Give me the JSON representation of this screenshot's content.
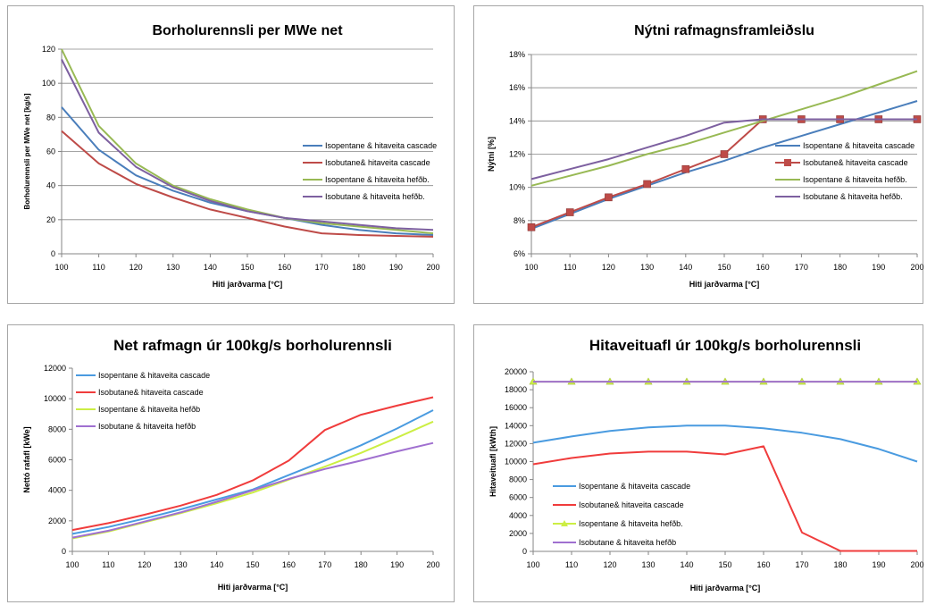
{
  "chart_data": [
    {
      "type": "line",
      "title": "Borholurennsli per MWe net",
      "xlabel": "Hiti jarðvarma [°C]",
      "ylabel": "Borholurennsli per MWe net [kg/s]",
      "x": [
        100,
        110,
        120,
        130,
        140,
        150,
        160,
        170,
        180,
        190,
        200
      ],
      "xlim": [
        100,
        200
      ],
      "ylim": [
        0,
        120
      ],
      "yticks": [
        0,
        20,
        40,
        60,
        80,
        100,
        120
      ],
      "ytick_labels": [
        "0",
        "20",
        "40",
        "60",
        "80",
        "100",
        "120"
      ],
      "grid": "horizontal",
      "legend_position": "right",
      "series": [
        {
          "name": "Isopentane & hitaveita cascade",
          "color": "#4a7ebb",
          "values": [
            86,
            61,
            46,
            37,
            30,
            25,
            21,
            17,
            14,
            12,
            11
          ]
        },
        {
          "name": "Isobutane& hitaveita cascade",
          "color": "#be4b48",
          "values": [
            72,
            53,
            41,
            33,
            26,
            21,
            16,
            12,
            11,
            10.5,
            10
          ]
        },
        {
          "name": "Isopentane & hitaveita hefðb.",
          "color": "#98b954",
          "values": [
            120,
            75,
            53,
            40,
            32,
            26,
            21,
            18,
            16,
            14,
            12
          ]
        },
        {
          "name": "Isobutane & hitaveita hefðb.",
          "color": "#7d60a0",
          "values": [
            114,
            71,
            51,
            39,
            31,
            25,
            21,
            19,
            17,
            15,
            14
          ]
        }
      ]
    },
    {
      "type": "line",
      "title": "Nýtni rafmagnsframleiðslu",
      "xlabel": "Hiti jarðvarma [°C]",
      "ylabel": "Nýtni [%]",
      "x": [
        100,
        110,
        120,
        130,
        140,
        150,
        160,
        170,
        180,
        190,
        200
      ],
      "xlim": [
        100,
        200
      ],
      "ylim": [
        6,
        18
      ],
      "yticks": [
        6,
        8,
        10,
        12,
        14,
        16,
        18
      ],
      "ytick_labels": [
        "6%",
        "8%",
        "10%",
        "12%",
        "14%",
        "16%",
        "18%"
      ],
      "grid": "horizontal",
      "legend_position": "right",
      "series": [
        {
          "name": "Isopentane & hitaveita cascade",
          "color": "#4a7ebb",
          "values": [
            7.5,
            8.4,
            9.3,
            10.1,
            10.9,
            11.6,
            12.4,
            13.1,
            13.8,
            14.5,
            15.2
          ]
        },
        {
          "name": "Isobutane& hitaveita cascade",
          "color": "#be4b48",
          "marker": "square",
          "values": [
            7.6,
            8.5,
            9.4,
            10.2,
            11.1,
            12.0,
            14.1,
            14.1,
            14.1,
            14.1,
            14.1
          ]
        },
        {
          "name": "Isopentane & hitaveita hefðb.",
          "color": "#98b954",
          "values": [
            10.1,
            10.7,
            11.3,
            12.0,
            12.6,
            13.3,
            14.0,
            14.7,
            15.4,
            16.2,
            17.0
          ]
        },
        {
          "name": "Isobutane & hitaveita hefðb.",
          "color": "#7d60a0",
          "values": [
            10.5,
            11.1,
            11.7,
            12.4,
            13.1,
            13.9,
            14.1,
            14.1,
            14.1,
            14.1,
            14.1
          ]
        }
      ]
    },
    {
      "type": "line",
      "title": "Net rafmagn úr 100kg/s borholurennsli",
      "xlabel": "Hiti jarðvarma [°C]",
      "ylabel": "Nettó rafafl [kWe]",
      "x": [
        100,
        110,
        120,
        130,
        140,
        150,
        160,
        170,
        180,
        190,
        200
      ],
      "xlim": [
        100,
        200
      ],
      "ylim": [
        0,
        12000
      ],
      "yticks": [
        0,
        2000,
        4000,
        6000,
        8000,
        10000,
        12000
      ],
      "ytick_labels": [
        "0",
        "2000",
        "4000",
        "6000",
        "8000",
        "10000",
        "12000"
      ],
      "grid": "none",
      "legend_position": "top-left",
      "series": [
        {
          "name": "Isopentane & hitaveita cascade",
          "color": "#4a9be0",
          "values": [
            1150,
            1600,
            2150,
            2750,
            3400,
            4050,
            5000,
            5950,
            6950,
            8050,
            9250
          ]
        },
        {
          "name": "Isobutane& hitaveita cascade",
          "color": "#f03c3c",
          "values": [
            1400,
            1850,
            2400,
            3000,
            3700,
            4650,
            5950,
            7950,
            8950,
            9550,
            10100
          ]
        },
        {
          "name": "Isopentane & hitaveita hefðb",
          "color": "#ccee44",
          "values": [
            850,
            1300,
            1900,
            2500,
            3150,
            3850,
            4700,
            5550,
            6450,
            7450,
            8500
          ]
        },
        {
          "name": "Isobutane & hitaveita hefðb",
          "color": "#a070d0",
          "values": [
            900,
            1350,
            1950,
            2550,
            3250,
            4000,
            4750,
            5400,
            5950,
            6550,
            7100
          ]
        }
      ]
    },
    {
      "type": "line",
      "title": "Hitaveituafl úr 100kg/s borholurennsli",
      "xlabel": "Hiti jarðvarma [°C]",
      "ylabel": "Hitaveituafl [kWth]",
      "x": [
        100,
        110,
        120,
        130,
        140,
        150,
        160,
        170,
        180,
        190,
        200
      ],
      "xlim": [
        100,
        200
      ],
      "ylim": [
        0,
        20000
      ],
      "yticks": [
        0,
        2000,
        4000,
        6000,
        8000,
        10000,
        12000,
        14000,
        16000,
        18000,
        20000
      ],
      "ytick_labels": [
        "0",
        "2000",
        "4000",
        "6000",
        "8000",
        "10000",
        "12000",
        "14000",
        "16000",
        "18000",
        "20000"
      ],
      "grid": "none",
      "legend_position": "left-center",
      "series": [
        {
          "name": "Isopentane & hitaveita cascade",
          "color": "#4a9be0",
          "values": [
            12100,
            12800,
            13400,
            13800,
            14000,
            14000,
            13700,
            13200,
            12500,
            11400,
            10000
          ]
        },
        {
          "name": "Isobutane& hitaveita cascade",
          "color": "#f03c3c",
          "values": [
            9700,
            10400,
            10900,
            11100,
            11100,
            10800,
            11700,
            2100,
            50,
            50,
            50
          ]
        },
        {
          "name": "Isopentane & hitaveita hefðb.",
          "color": "#ccee44",
          "marker": "triangle",
          "values": [
            18900,
            18900,
            18900,
            18900,
            18900,
            18900,
            18900,
            18900,
            18900,
            18900,
            18900
          ]
        },
        {
          "name": "Isobutane & hitaveita hefðb",
          "color": "#a070d0",
          "values": [
            18900,
            18900,
            18900,
            18900,
            18900,
            18900,
            18900,
            18900,
            18900,
            18900,
            18900
          ]
        }
      ]
    }
  ]
}
